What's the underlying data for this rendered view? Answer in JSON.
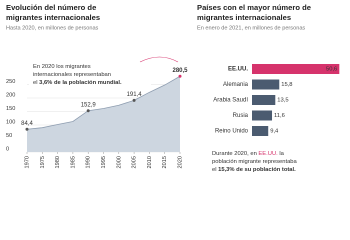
{
  "chart_data": [
    {
      "type": "area",
      "title": [
        "Evolución del número de",
        "migrantes internacionales"
      ],
      "subtitle": "Hasta 2020, en millones de personas",
      "x": [
        1970,
        1975,
        1980,
        1985,
        1990,
        1995,
        2000,
        2005,
        2010,
        2015,
        2020
      ],
      "values": [
        84.4,
        90,
        102,
        113,
        152.9,
        161,
        173,
        191.4,
        221,
        248,
        280.5
      ],
      "value_labels": [
        "84,4",
        null,
        null,
        null,
        "152,9",
        null,
        null,
        "191,4",
        null,
        null,
        "280,5"
      ],
      "xlim": [
        1970,
        2020
      ],
      "xticks": [
        1970,
        1975,
        1980,
        1985,
        1990,
        1995,
        2000,
        2005,
        2010,
        2015,
        2020
      ],
      "ylim": [
        0,
        300
      ],
      "yticks": [
        0,
        50,
        100,
        150,
        200,
        250
      ],
      "grid": true,
      "color": "#8e9db0",
      "fill": "#cdd6e0",
      "highlight": "#d6336c",
      "annotation": [
        [
          "En 2020 los migrantes"
        ],
        [
          "internacionales representaban"
        ],
        [
          "el ",
          "3,6% de la población mundial."
        ]
      ]
    },
    {
      "type": "hbar",
      "title": [
        "Países con el mayor número de",
        "migrantes internacionales"
      ],
      "subtitle": "En enero de 2021, en millones de personas",
      "categories": [
        "EE.UU.",
        "Alemania",
        "Arabia Saudí",
        "Rusia",
        "Reino Unido"
      ],
      "values": [
        50.6,
        15.8,
        13.5,
        11.6,
        9.4
      ],
      "value_labels": [
        "50,6",
        "15,8",
        "13,5",
        "11,6",
        "9,4"
      ],
      "colors": [
        "#d6336c",
        "#4b5b70",
        "#4b5b70",
        "#4b5b70",
        "#4b5b70"
      ],
      "xlim": [
        0,
        51
      ],
      "annotation": [
        [
          "Durante 2020, en ",
          "EE.UU.",
          " la"
        ],
        [
          "población migrante representaba"
        ],
        [
          "el ",
          "15,3% de su población total."
        ]
      ]
    }
  ]
}
